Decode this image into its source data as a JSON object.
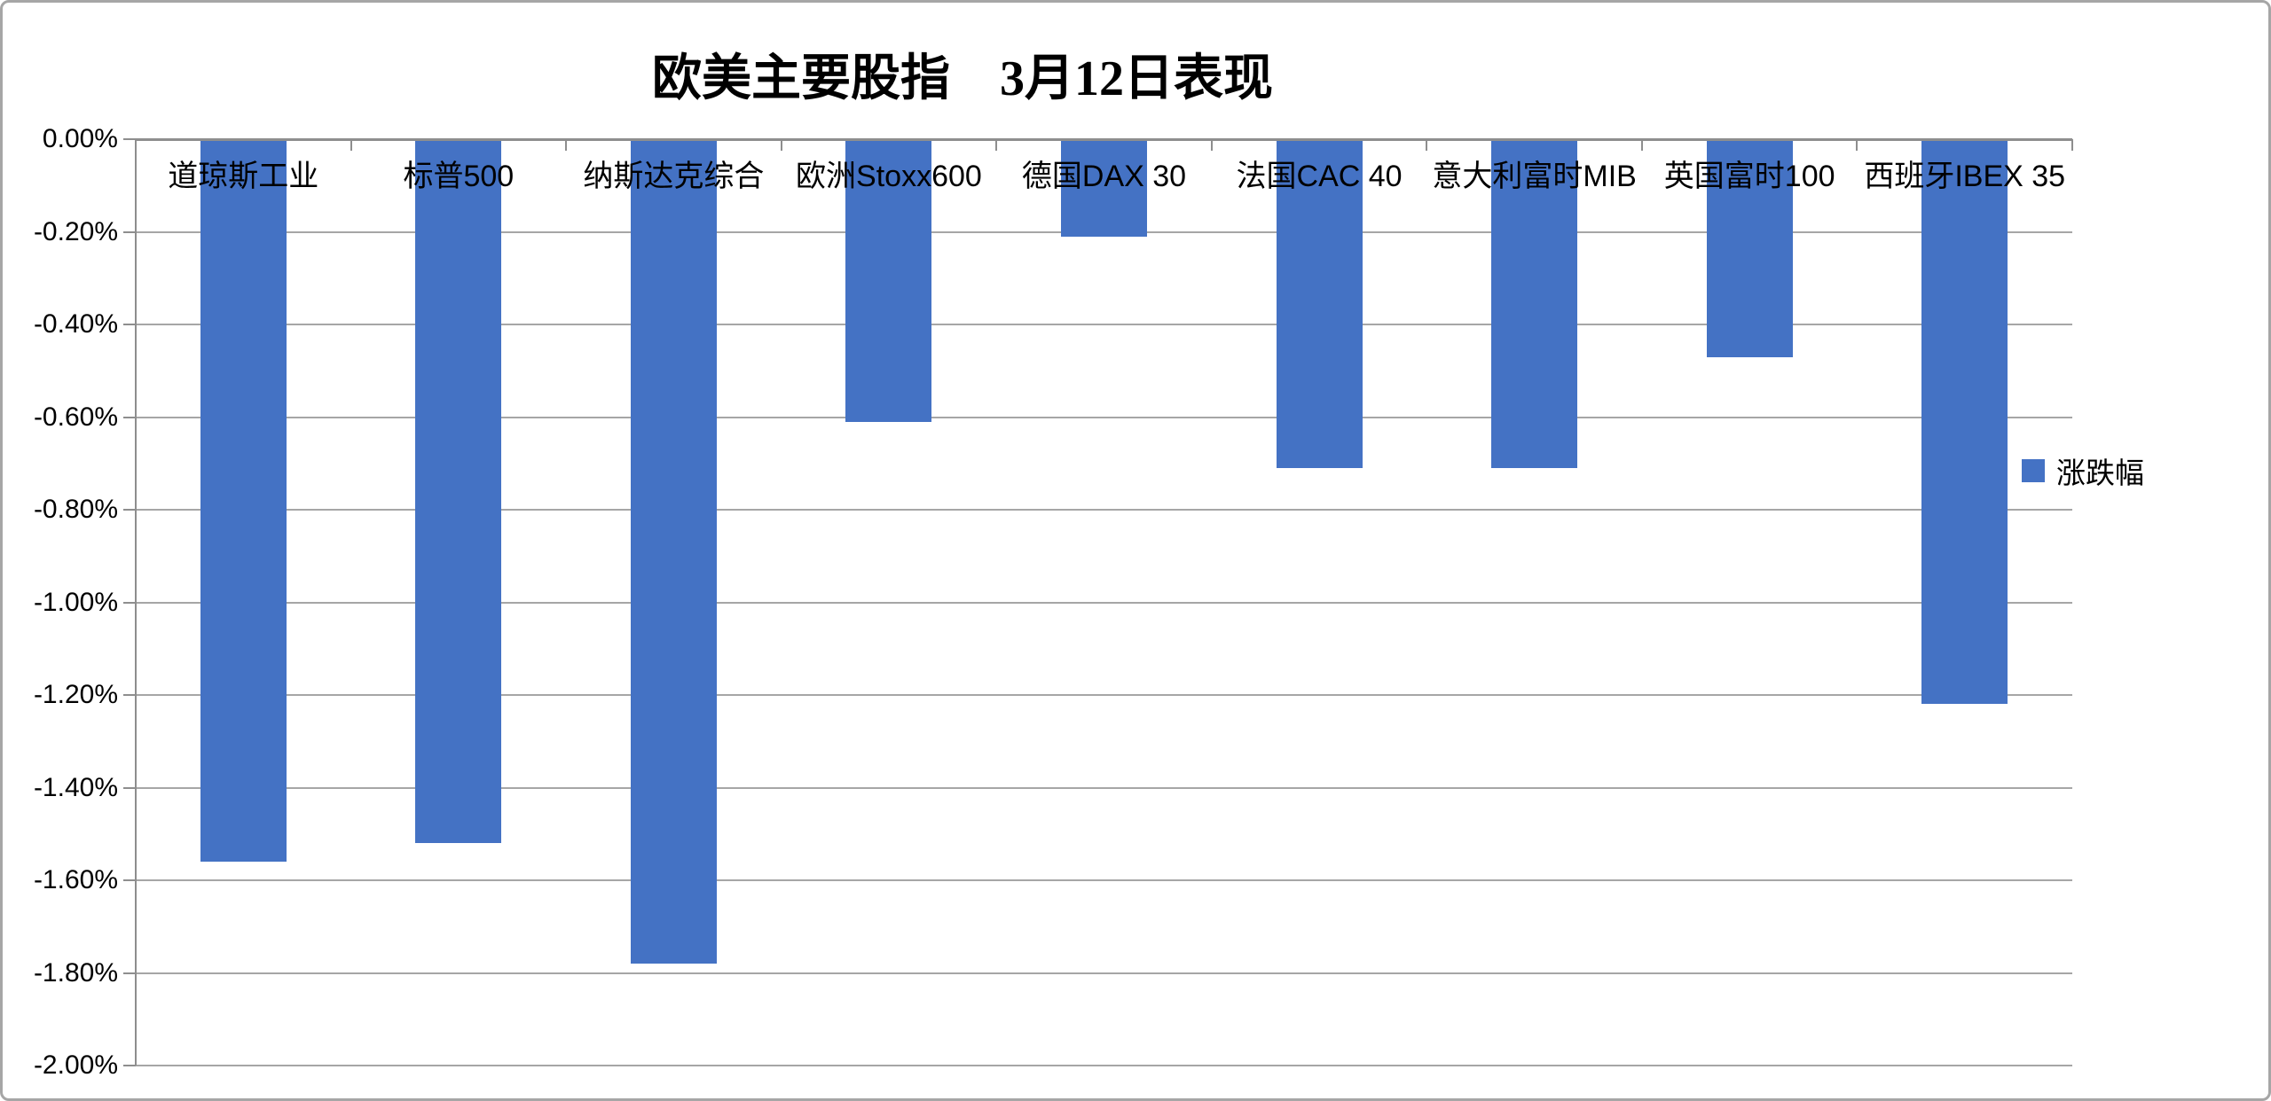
{
  "title": "欧美主要股指　3月12日表现",
  "legend": {
    "label": "涨跌幅"
  },
  "chart_data": {
    "type": "bar",
    "title": "欧美主要股指　3月12日表现",
    "categories": [
      "道琼斯工业",
      "标普500",
      "纳斯达克综合",
      "欧洲Stoxx600",
      "德国DAX 30",
      "法国CAC 40",
      "意大利富时MIB",
      "英国富时100",
      "西班牙IBEX 35"
    ],
    "series": [
      {
        "name": "涨跌幅",
        "values": [
          -1.56,
          -1.52,
          -1.78,
          -0.61,
          -0.21,
          -0.71,
          -0.71,
          -0.47,
          -1.22
        ]
      }
    ],
    "value_unit": "%",
    "ylim": [
      -2.0,
      0.0
    ],
    "y_tick_step": 0.2,
    "y_tick_labels": [
      "0.00%",
      "-0.20%",
      "-0.40%",
      "-0.60%",
      "-0.80%",
      "-1.00%",
      "-1.20%",
      "-1.40%",
      "-1.60%",
      "-1.80%",
      "-2.00%"
    ],
    "grid": true,
    "legend_position": "right",
    "legend_entries": [
      "涨跌幅"
    ]
  },
  "colors": {
    "bar": "#4472C4",
    "gridline": "#A6A6A6",
    "axis_line": "#8E8E8E",
    "tick": "#8E8E8E",
    "border": "#A6A6A6",
    "text": "#000000"
  }
}
